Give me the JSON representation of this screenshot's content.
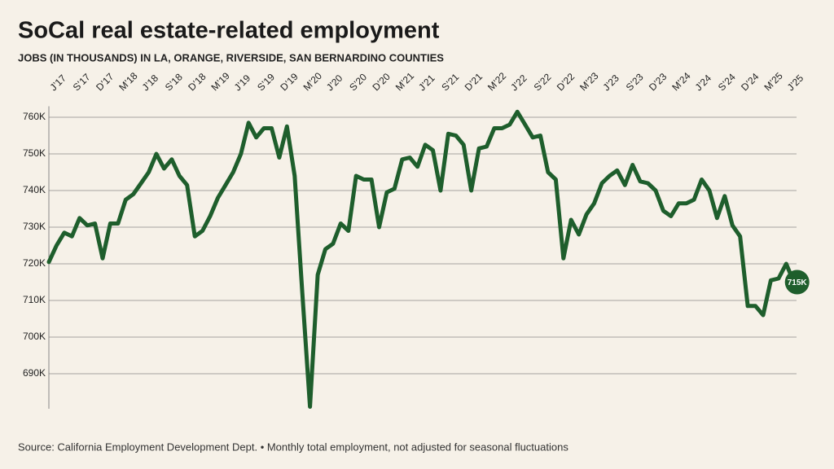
{
  "chart_data": {
    "type": "line",
    "title": "SoCal real estate-related employment",
    "subtitle": "JOBS (IN THOUSANDS) IN LA, ORANGE, RIVERSIDE, SAN BERNARDINO COUNTIES",
    "source": "Source: California Employment Development Dept. • Monthly total employment, not adjusted for seasonal fluctuations",
    "color": "#1e5e2c",
    "grid": true,
    "ylim": [
      680,
      763
    ],
    "yticks": [
      {
        "value": 690,
        "label": "690K"
      },
      {
        "value": 700,
        "label": "700K"
      },
      {
        "value": 710,
        "label": "710K"
      },
      {
        "value": 720,
        "label": "720K"
      },
      {
        "value": 730,
        "label": "730K"
      },
      {
        "value": 740,
        "label": "740K"
      },
      {
        "value": 750,
        "label": "750K"
      },
      {
        "value": 760,
        "label": "760K"
      }
    ],
    "categories": [
      "J’17",
      null,
      null,
      "S’17",
      null,
      null,
      "D’17",
      null,
      null,
      "M’18",
      null,
      null,
      "J’18",
      null,
      null,
      "S’18",
      null,
      null,
      "D’18",
      null,
      null,
      "M’19",
      null,
      null,
      "J’19",
      null,
      null,
      "S’19",
      null,
      null,
      "D’19",
      null,
      null,
      "M’20",
      null,
      null,
      "J’20",
      null,
      null,
      "S’20",
      null,
      null,
      "D’20",
      null,
      null,
      "M’21",
      null,
      null,
      "J’21",
      null,
      null,
      "S’21",
      null,
      null,
      "D’21",
      null,
      null,
      "M’22",
      null,
      null,
      "J’22",
      null,
      null,
      "S’22",
      null,
      null,
      "D’22",
      null,
      null,
      "M’23",
      null,
      null,
      "J’23",
      null,
      null,
      "S’23",
      null,
      null,
      "D’23",
      null,
      null,
      "M’24",
      null,
      null,
      "J’24",
      null,
      null,
      "S’24",
      null,
      null,
      "D’24",
      null,
      null,
      "M’25",
      null,
      null,
      "J’25",
      null
    ],
    "values": [
      720.5,
      725,
      728.5,
      727.5,
      732.5,
      730.5,
      731,
      721.5,
      731,
      731,
      737.5,
      739,
      742,
      745,
      750,
      746,
      748.5,
      744,
      741.5,
      727.5,
      729,
      733,
      738,
      741.5,
      745,
      750,
      758.5,
      754.5,
      757,
      757,
      749,
      757.5,
      744,
      712,
      681,
      717,
      724,
      725.5,
      731,
      729,
      744,
      743,
      743,
      730,
      739.5,
      740.5,
      748.5,
      749,
      746.5,
      752.5,
      751,
      740,
      755.5,
      755,
      752.5,
      740,
      751.5,
      752,
      757,
      757,
      758,
      761.5,
      758,
      754.5,
      755,
      745,
      743,
      721.5,
      732,
      728,
      733.5,
      736.5,
      742,
      744,
      745.5,
      741.5,
      747,
      742.5,
      742,
      740,
      734.5,
      733,
      736.5,
      736.5,
      737.5,
      743,
      740,
      732.5,
      738.5,
      730.5,
      727.5,
      708.5,
      708.5,
      706,
      715.5,
      716,
      720,
      715
    ],
    "value_labels": [
      null,
      null,
      null,
      null,
      null,
      null,
      null,
      null,
      null,
      null,
      null,
      null,
      null,
      null,
      null,
      null,
      null,
      null,
      null,
      null,
      null,
      null,
      null,
      null,
      null,
      null,
      null,
      null,
      null,
      null,
      null,
      null,
      null,
      null,
      null,
      null,
      null,
      null,
      null,
      null,
      null,
      null,
      null,
      null,
      null,
      null,
      null,
      null,
      null,
      null,
      null,
      null,
      null,
      null,
      null,
      null,
      null,
      null,
      null,
      null,
      null,
      null,
      null,
      null,
      null,
      null,
      null,
      null,
      null,
      null,
      null,
      null,
      null,
      null,
      null,
      null,
      null,
      null,
      null,
      null,
      null,
      null,
      null,
      null,
      null,
      null,
      null,
      null,
      null,
      null,
      null,
      null,
      null,
      null,
      null,
      null,
      null,
      "715K"
    ]
  }
}
